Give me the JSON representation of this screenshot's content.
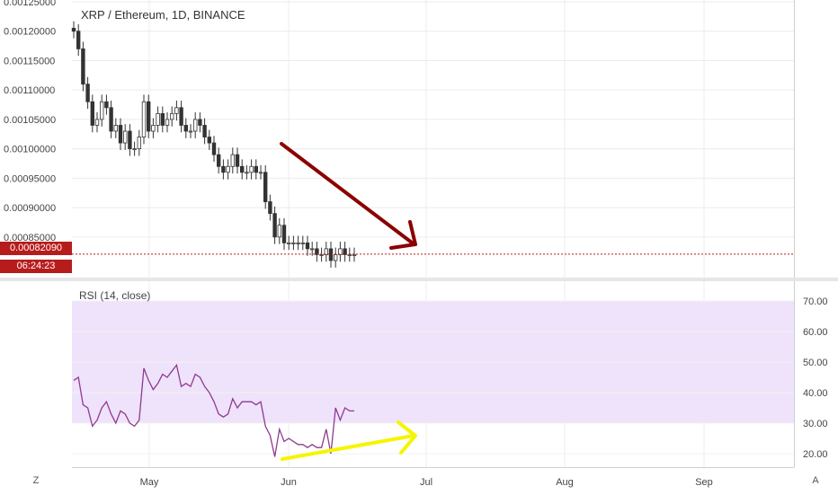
{
  "header": {
    "title": "XRP / Ethereum, 1D, BINANCE"
  },
  "rsi": {
    "title": "RSI (14, close)",
    "band_upper": 70,
    "band_lower": 30,
    "ticks": [
      "70.00",
      "60.00",
      "50.00",
      "40.00",
      "30.00",
      "20.00"
    ]
  },
  "price_axis": {
    "ticks": [
      "0.00125000",
      "0.00120000",
      "0.00115000",
      "0.00110000",
      "0.00105000",
      "0.00100000",
      "0.00095000",
      "0.00090000",
      "0.00085000"
    ],
    "last_price": "0.00082090",
    "countdown": "06:24:23"
  },
  "time_axis": {
    "months": [
      "May",
      "Jun",
      "Jul",
      "Aug",
      "Sep"
    ]
  },
  "buttons": {
    "left": "Z",
    "right": "A"
  },
  "colors": {
    "up": "#26a69a",
    "down": "#333333",
    "rsi_line": "#8e3b8e",
    "rsi_band": "#efe2fb",
    "red_arrow": "#8b0000",
    "yellow_arrow": "#f5f500",
    "last_price": "#b71c1c"
  },
  "chart_data": [
    {
      "type": "candlestick",
      "title": "XRP / Ethereum, 1D, BINANCE",
      "ylim": [
        0.00081,
        0.00125
      ],
      "x_start": "Apr 15",
      "close": [
        0.0012,
        0.00117,
        0.00111,
        0.00108,
        0.00104,
        0.00105,
        0.00108,
        0.00107,
        0.00103,
        0.00104,
        0.00101,
        0.00103,
        0.001,
        0.001,
        0.00102,
        0.00108,
        0.00103,
        0.00104,
        0.00106,
        0.00104,
        0.00105,
        0.00106,
        0.00107,
        0.00104,
        0.00103,
        0.00103,
        0.00105,
        0.00104,
        0.00102,
        0.00101,
        0.00099,
        0.00097,
        0.00096,
        0.00097,
        0.00099,
        0.00097,
        0.00096,
        0.00096,
        0.00097,
        0.00096,
        0.00096,
        0.00091,
        0.00089,
        0.00085,
        0.00087,
        0.00084,
        0.00084,
        0.00084,
        0.00084,
        0.00084,
        0.00083,
        0.00083,
        0.00082,
        0.00082,
        0.00083,
        0.00081,
        0.00082,
        0.00083,
        0.00082,
        0.00082,
        0.00082
      ],
      "annotations": [
        "downtrend arrow (price)",
        "last price line 0.00082090"
      ]
    },
    {
      "type": "line",
      "title": "RSI (14, close)",
      "ylim": [
        15,
        75
      ],
      "band": [
        30,
        70
      ],
      "values": [
        44,
        45,
        36,
        35,
        29,
        31,
        35,
        37,
        33,
        30,
        34,
        33,
        30,
        29,
        31,
        48,
        44,
        41,
        43,
        46,
        45,
        47,
        49,
        42,
        43,
        42,
        46,
        45,
        42,
        40,
        37,
        33,
        32,
        33,
        38,
        35,
        37,
        37,
        37,
        36,
        37,
        29,
        26,
        19,
        28,
        24,
        25,
        24,
        23,
        23,
        22,
        23,
        22,
        22,
        28,
        20,
        35,
        31,
        35,
        34,
        34
      ],
      "annotations": [
        "uptrend arrow (RSI divergence)"
      ]
    }
  ]
}
